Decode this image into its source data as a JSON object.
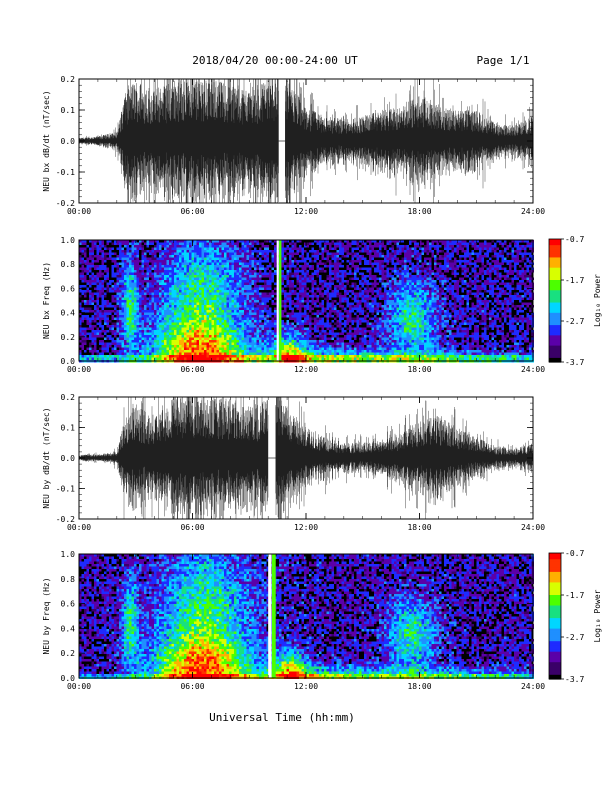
{
  "header": {
    "title": "2018/04/20  00:00-24:00 UT",
    "page_label": "Page 1/1"
  },
  "footer": {
    "xlabel": "Universal Time (hh:mm)"
  },
  "colors": {
    "background": "#ffffff",
    "trace": "#000000",
    "spectrogram_floor": "#000000",
    "colormap": [
      "#000000",
      "#3a0068",
      "#5b00a8",
      "#1e2bff",
      "#1f8fff",
      "#00d6ff",
      "#18e080",
      "#4cff00",
      "#d8ff00",
      "#ffb000",
      "#ff3300",
      "#ff0000"
    ]
  },
  "chart_data": [
    {
      "type": "line",
      "ylabel": "NEU bx dB/dt (nT/sec)",
      "ylim": [
        -0.2,
        0.2
      ],
      "yticks": [
        "-0.2",
        "-0.1",
        "0.0",
        "0.1",
        "0.2"
      ],
      "xlim": [
        "00:00",
        "24:00"
      ],
      "xticks": [
        "00:00",
        "06:00",
        "12:00",
        "18:00",
        "24:00"
      ],
      "data_gap_hours": [
        10.55,
        10.9
      ],
      "envelope": {
        "hours": [
          0,
          1,
          2,
          2.5,
          3,
          4,
          5,
          6,
          7,
          8,
          9,
          10,
          10.5,
          11,
          12,
          13,
          14,
          15,
          16,
          17,
          18,
          19,
          20,
          21,
          22,
          23,
          24
        ],
        "amplitude": [
          0.01,
          0.015,
          0.03,
          0.17,
          0.2,
          0.17,
          0.2,
          0.22,
          0.2,
          0.19,
          0.17,
          0.2,
          0.22,
          0.2,
          0.11,
          0.08,
          0.075,
          0.08,
          0.1,
          0.11,
          0.15,
          0.12,
          0.1,
          0.1,
          0.06,
          0.05,
          0.08
        ]
      }
    },
    {
      "type": "heatmap",
      "ylabel": "NEU bx Freq (Hz)",
      "ylim": [
        0.0,
        1.0
      ],
      "yticks": [
        "0.0",
        "0.2",
        "0.4",
        "0.6",
        "0.8",
        "1.0"
      ],
      "xlim": [
        "00:00",
        "24:00"
      ],
      "xticks": [
        "00:00",
        "06:00",
        "12:00",
        "18:00",
        "24:00"
      ],
      "data_gap_hours": [
        10.45,
        10.7
      ],
      "colorbar": {
        "label": "Log₁₀ Power",
        "ticks": [
          "-0.7",
          "-1.7",
          "-2.7",
          "-3.7"
        ],
        "range": [
          -3.7,
          -0.7
        ]
      }
    },
    {
      "type": "line",
      "ylabel": "NEU by dB/dt (nT/sec)",
      "ylim": [
        -0.2,
        0.2
      ],
      "yticks": [
        "-0.2",
        "-0.1",
        "0.0",
        "0.1",
        "0.2"
      ],
      "xlim": [
        "00:00",
        "24:00"
      ],
      "xticks": [
        "00:00",
        "06:00",
        "12:00",
        "18:00",
        "24:00"
      ],
      "data_gap_hours": [
        10.0,
        10.4
      ],
      "envelope": {
        "hours": [
          0,
          1,
          2,
          2.5,
          3,
          4,
          5,
          6,
          7,
          8,
          9,
          10,
          10.5,
          11,
          12,
          13,
          14,
          15,
          16,
          17,
          18,
          19,
          20,
          21,
          22,
          23,
          24
        ],
        "amplitude": [
          0.01,
          0.012,
          0.02,
          0.15,
          0.17,
          0.14,
          0.19,
          0.22,
          0.2,
          0.19,
          0.16,
          0.2,
          0.22,
          0.17,
          0.1,
          0.07,
          0.05,
          0.05,
          0.06,
          0.08,
          0.12,
          0.14,
          0.1,
          0.07,
          0.04,
          0.03,
          0.05
        ]
      }
    },
    {
      "type": "heatmap",
      "ylabel": "NEU by Freq (Hz)",
      "ylim": [
        0.0,
        1.0
      ],
      "yticks": [
        "0.0",
        "0.2",
        "0.4",
        "0.6",
        "0.8",
        "1.0"
      ],
      "xlim": [
        "00:00",
        "24:00"
      ],
      "xticks": [
        "00:00",
        "06:00",
        "12:00",
        "18:00",
        "24:00"
      ],
      "data_gap_hours": [
        10.0,
        10.4
      ],
      "colorbar": {
        "label": "Log₁₀ Power",
        "ticks": [
          "-0.7",
          "-1.7",
          "-2.7",
          "-3.7"
        ],
        "range": [
          -3.7,
          -0.7
        ]
      }
    }
  ]
}
